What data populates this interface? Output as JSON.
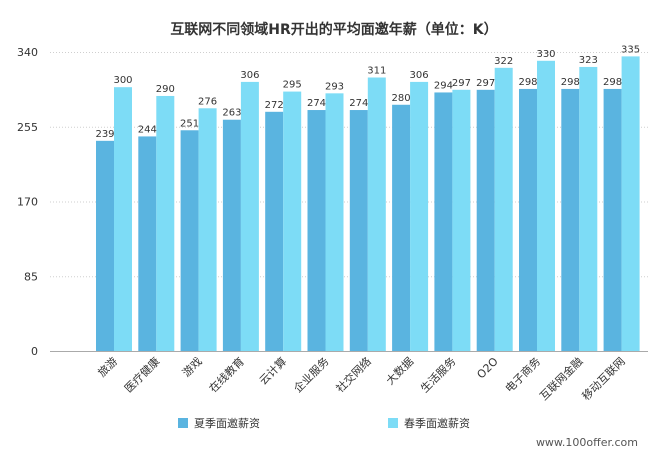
{
  "chart_data": {
    "type": "bar",
    "title": "互联网不同领域HR开出的平均面邀年薪（单位：K）",
    "categories": [
      "旅游",
      "医疗健康",
      "游戏",
      "在线教育",
      "云计算",
      "企业服务",
      "社交网络",
      "大数据",
      "生活服务",
      "O2O",
      "电子商务",
      "互联网金融",
      "移动互联网"
    ],
    "series": [
      {
        "name": "夏季面邀薪资",
        "color": "#5ab4e0",
        "values": [
          239,
          244,
          251,
          263,
          272,
          274,
          274,
          280,
          294,
          297,
          298,
          298,
          298
        ]
      },
      {
        "name": "春季面邀薪资",
        "color": "#7ddcf6",
        "values": [
          300,
          290,
          276,
          306,
          295,
          293,
          311,
          306,
          297,
          322,
          330,
          323,
          335
        ]
      }
    ],
    "ylim": [
      0,
      340
    ],
    "yticks": [
      0,
      85,
      170,
      255,
      340
    ],
    "xlabel": "",
    "ylabel": "",
    "grid": true,
    "legend": "bottom"
  },
  "watermark": "www.100offer.com"
}
